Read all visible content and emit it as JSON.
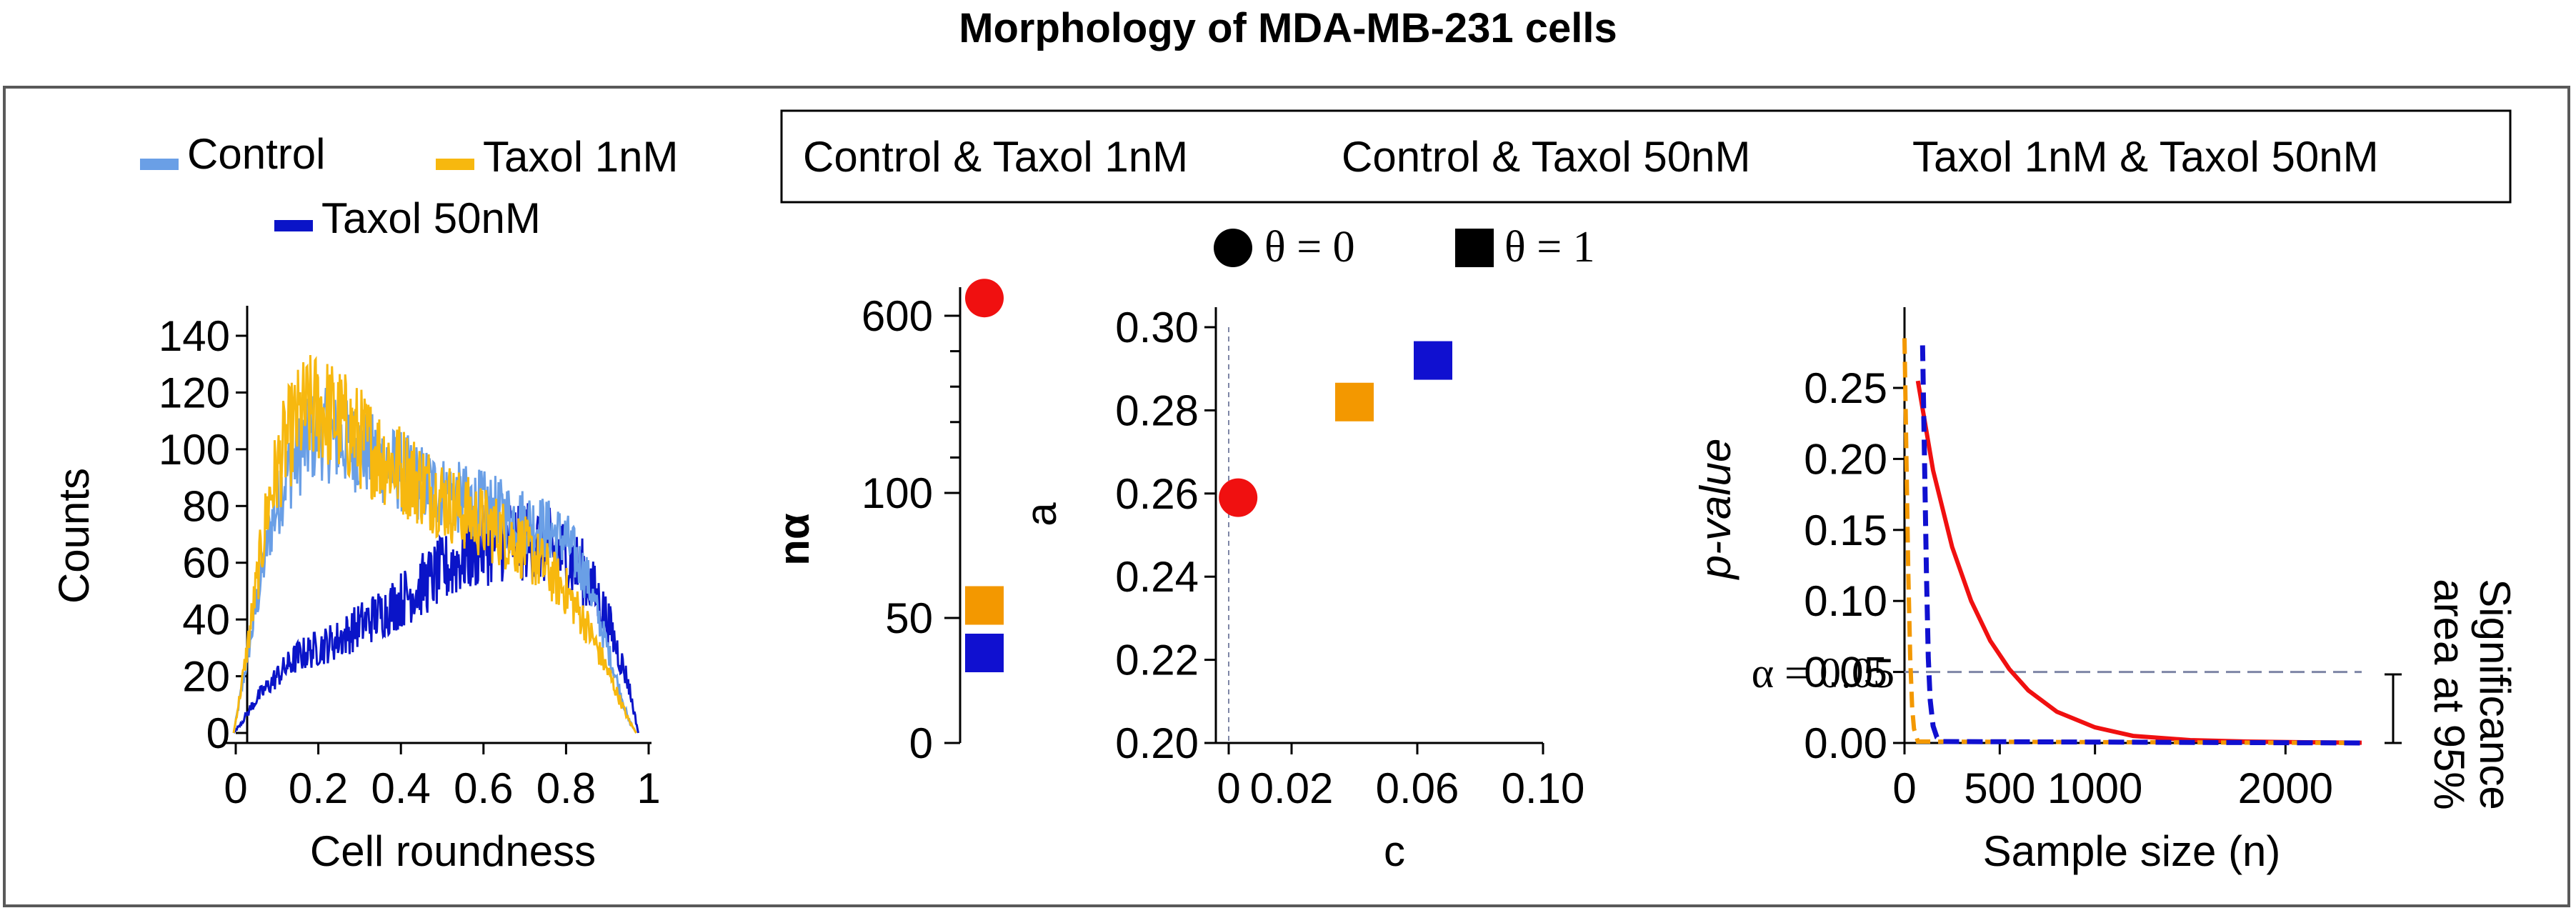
{
  "title": "Morphology of MDA-MB-231 cells",
  "colors": {
    "control": "#6a9fe6",
    "taxol1": "#f7b80f",
    "taxol50": "#0a14c8",
    "pair_ctrl_t1": "#f01010",
    "pair_ctrl_t50": "#f39800",
    "pair_t1_t50": "#1010d0",
    "guide": "#7e86a6"
  },
  "legends": {
    "group_entries": [
      "Control",
      "Taxol 1nM",
      "Taxol 50nM"
    ],
    "pair_entries": [
      "Control & Taxol 1nM",
      "Control & Taxol 50nM",
      "Taxol 1nM & Taxol 50nM"
    ],
    "theta_entries": [
      "θ = 0",
      "θ = 1"
    ]
  },
  "annotations": {
    "alpha_line": "α = 0.05",
    "significance_line1": "Significance",
    "significance_line2": "area at 95%"
  },
  "chart_data": [
    {
      "type": "line",
      "xlabel": "Cell roundness",
      "ylabel": "Counts",
      "xlim": [
        0,
        1
      ],
      "ylim": [
        0,
        145
      ],
      "xticks": [
        "0",
        "0.2",
        "0.4",
        "0.6",
        "0.8",
        "1"
      ],
      "yticks": [
        "0",
        "20",
        "40",
        "60",
        "80",
        "100",
        "120",
        "140"
      ],
      "series": [
        {
          "name": "Control",
          "x": [
            -0.005,
            0.02,
            0.05,
            0.08,
            0.12,
            0.16,
            0.2,
            0.25,
            0.3,
            0.35,
            0.4,
            0.45,
            0.5,
            0.55,
            0.6,
            0.65,
            0.7,
            0.75,
            0.8,
            0.85,
            0.9,
            0.95,
            0.97
          ],
          "values": [
            0,
            20,
            45,
            70,
            90,
            100,
            106,
            103,
            100,
            96,
            92,
            88,
            85,
            82,
            80,
            77,
            75,
            72,
            68,
            55,
            30,
            5,
            0
          ]
        },
        {
          "name": "Taxol 1nM",
          "x": [
            -0.005,
            0.02,
            0.05,
            0.08,
            0.12,
            0.16,
            0.2,
            0.25,
            0.3,
            0.35,
            0.4,
            0.45,
            0.5,
            0.55,
            0.6,
            0.65,
            0.7,
            0.75,
            0.8,
            0.85,
            0.9,
            0.95,
            0.97
          ],
          "values": [
            0,
            22,
            52,
            82,
            102,
            112,
            115,
            110,
            104,
            98,
            93,
            88,
            83,
            78,
            74,
            70,
            65,
            58,
            50,
            38,
            22,
            5,
            0
          ]
        },
        {
          "name": "Taxol 50nM",
          "x": [
            -0.005,
            0.02,
            0.05,
            0.1,
            0.15,
            0.2,
            0.25,
            0.3,
            0.35,
            0.4,
            0.45,
            0.5,
            0.55,
            0.6,
            0.65,
            0.7,
            0.75,
            0.8,
            0.85,
            0.9,
            0.95,
            0.975
          ],
          "values": [
            0,
            5,
            12,
            20,
            27,
            30,
            33,
            38,
            42,
            47,
            52,
            57,
            62,
            66,
            68,
            68,
            66,
            62,
            55,
            40,
            18,
            0
          ]
        }
      ]
    },
    {
      "type": "scatter",
      "ylabel": "nα",
      "yticks": [
        "0",
        "50",
        "100",
        "600"
      ],
      "points": [
        {
          "pair": "Control & Taxol 1nM",
          "marker": "circle",
          "value": 650
        },
        {
          "pair": "Control & Taxol 50nM",
          "marker": "square",
          "value": 55
        },
        {
          "pair": "Taxol 1nM & Taxol 50nM",
          "marker": "square",
          "value": 36
        }
      ]
    },
    {
      "type": "scatter",
      "xlabel": "c",
      "ylabel": "a",
      "xlim": [
        0,
        0.1
      ],
      "ylim": [
        0.2,
        0.3
      ],
      "xticks": [
        "0",
        "0.02",
        "0.06",
        "0.10"
      ],
      "yticks": [
        "0.20",
        "0.22",
        "0.24",
        "0.26",
        "0.28",
        "0.30"
      ],
      "points": [
        {
          "pair": "Control & Taxol 1nM",
          "marker": "circle",
          "x": 0.003,
          "y": 0.259
        },
        {
          "pair": "Control & Taxol 50nM",
          "marker": "square",
          "x": 0.04,
          "y": 0.282
        },
        {
          "pair": "Taxol 1nM & Taxol 50nM",
          "marker": "square",
          "x": 0.065,
          "y": 0.292
        }
      ]
    },
    {
      "type": "line",
      "xlabel": "Sample size (n)",
      "ylabel": "p-value",
      "xlim": [
        0,
        2400
      ],
      "ylim": [
        0,
        0.28
      ],
      "xticks": [
        "0",
        "500",
        "1000",
        "2000"
      ],
      "yticks": [
        "0.00",
        "0.05",
        "0.10",
        "0.15",
        "0.20",
        "0.25"
      ],
      "alpha": 0.05,
      "series": [
        {
          "name": "Control & Taxol 1nM",
          "x": [
            70,
            150,
            250,
            350,
            450,
            550,
            650,
            800,
            1000,
            1200,
            1500,
            1800,
            2100,
            2400
          ],
          "values": [
            0.255,
            0.192,
            0.138,
            0.1,
            0.072,
            0.052,
            0.037,
            0.022,
            0.011,
            0.005,
            0.002,
            0.001,
            0.0005,
            0.0002
          ]
        },
        {
          "name": "Control & Taxol 50nM",
          "x": [
            0,
            10,
            20,
            30,
            40,
            50,
            70,
            2400
          ],
          "values": [
            0.285,
            0.2,
            0.12,
            0.06,
            0.025,
            0.01,
            0.001,
            0.0
          ]
        },
        {
          "name": "Taxol 1nM & Taxol 50nM",
          "x": [
            95,
            105,
            115,
            125,
            135,
            150,
            170,
            200,
            2400
          ],
          "values": [
            0.28,
            0.2,
            0.12,
            0.06,
            0.03,
            0.012,
            0.004,
            0.001,
            0.0
          ]
        }
      ]
    }
  ]
}
